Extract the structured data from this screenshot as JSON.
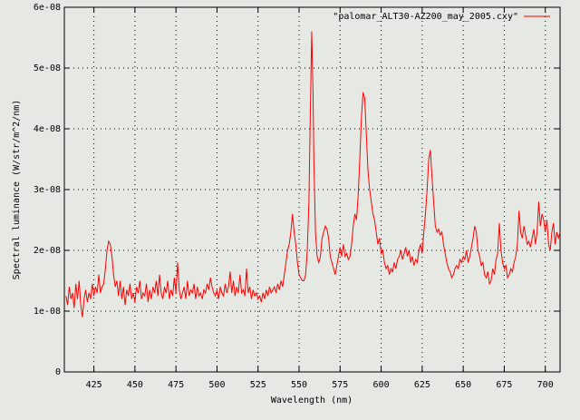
{
  "chart_data": {
    "type": "line",
    "xlabel": "Wavelength (nm)",
    "ylabel": "Spectral luminance (W/str/m^2/nm)",
    "xlim": [
      407,
      709
    ],
    "ylim": [
      0,
      6e-08
    ],
    "xticks": [
      425,
      450,
      475,
      500,
      525,
      550,
      575,
      600,
      625,
      650,
      675,
      700
    ],
    "yticks": [
      0,
      {
        "value": 1e-08,
        "label": "1e-08"
      },
      {
        "value": 2e-08,
        "label": "2e-08"
      },
      {
        "value": 3e-08,
        "label": "3e-08"
      },
      {
        "value": 4e-08,
        "label": "4e-08"
      },
      {
        "value": 5e-08,
        "label": "5e-08"
      },
      {
        "value": 6e-08,
        "label": "6e-08"
      }
    ],
    "grid": true,
    "legend": "top-right",
    "x": [
      408,
      409,
      410,
      411,
      412,
      413,
      414,
      415,
      416,
      417,
      418,
      419,
      420,
      421,
      422,
      423,
      424,
      425,
      426,
      427,
      428,
      429,
      430,
      431,
      432,
      433,
      434,
      435,
      436,
      437,
      438,
      439,
      440,
      441,
      442,
      443,
      444,
      445,
      446,
      447,
      448,
      449,
      450,
      451,
      452,
      453,
      454,
      455,
      456,
      457,
      458,
      459,
      460,
      461,
      462,
      463,
      464,
      465,
      466,
      467,
      468,
      469,
      470,
      471,
      472,
      473,
      474,
      475,
      476,
      477,
      478,
      479,
      480,
      481,
      482,
      483,
      484,
      485,
      486,
      487,
      488,
      489,
      490,
      491,
      492,
      493,
      494,
      495,
      496,
      497,
      498,
      499,
      500,
      501,
      502,
      503,
      504,
      505,
      506,
      507,
      508,
      509,
      510,
      511,
      512,
      513,
      514,
      515,
      516,
      517,
      518,
      519,
      520,
      521,
      522,
      523,
      524,
      525,
      526,
      527,
      528,
      529,
      530,
      531,
      532,
      533,
      534,
      535,
      536,
      537,
      538,
      539,
      540,
      541,
      542,
      543,
      544,
      545,
      546,
      547,
      548,
      549,
      550,
      551,
      552,
      553,
      554,
      555,
      556,
      557,
      557.7,
      558.5,
      559,
      560,
      561,
      562,
      563,
      564,
      565,
      566,
      567,
      568,
      569,
      570,
      571,
      572,
      573,
      574,
      575,
      576,
      577,
      578,
      579,
      580,
      581,
      582,
      583,
      584,
      585,
      586,
      587,
      588,
      589,
      590,
      591,
      592,
      593,
      594,
      595,
      596,
      597,
      598,
      599,
      600,
      601,
      602,
      603,
      604,
      605,
      606,
      607,
      608,
      609,
      610,
      611,
      612,
      613,
      614,
      615,
      616,
      617,
      618,
      619,
      620,
      621,
      622,
      623,
      624,
      625,
      626,
      627,
      628,
      629,
      630,
      631,
      632,
      633,
      634,
      635,
      636,
      637,
      638,
      639,
      640,
      641,
      642,
      643,
      644,
      645,
      646,
      647,
      648,
      649,
      650,
      651,
      652,
      653,
      654,
      655,
      656,
      657,
      658,
      659,
      660,
      661,
      662,
      663,
      664,
      665,
      666,
      667,
      668,
      669,
      670,
      671,
      672,
      673,
      674,
      675,
      676,
      677,
      678,
      679,
      680,
      681,
      682,
      683,
      684,
      685,
      686,
      687,
      688,
      689,
      690,
      691,
      692,
      693,
      694,
      695,
      696,
      697,
      698,
      699,
      700,
      701,
      702,
      703,
      704,
      705,
      706,
      707,
      708,
      709
    ],
    "series": [
      {
        "name": "\"palomar_ALT30-AZ200_may_2005.cxy\"",
        "color": "#ff0000",
        "values": [
          1.25e-08,
          1.1e-08,
          1.4e-08,
          1.2e-08,
          1.3e-08,
          1.05e-08,
          1.45e-08,
          1.2e-08,
          1.5e-08,
          1.1e-08,
          9e-09,
          1.2e-08,
          1.35e-08,
          1.15e-08,
          1.3e-08,
          1.2e-08,
          1.45e-08,
          1.25e-08,
          1.4e-08,
          1.3e-08,
          1.6e-08,
          1.3e-08,
          1.4e-08,
          1.45e-08,
          1.7e-08,
          2e-08,
          2.15e-08,
          2.1e-08,
          1.9e-08,
          1.6e-08,
          1.4e-08,
          1.5e-08,
          1.25e-08,
          1.5e-08,
          1.2e-08,
          1.4e-08,
          1.1e-08,
          1.35e-08,
          1.25e-08,
          1.45e-08,
          1.2e-08,
          1.3e-08,
          1.15e-08,
          1.4e-08,
          1.3e-08,
          1.5e-08,
          1.2e-08,
          1.3e-08,
          1.25e-08,
          1.45e-08,
          1.15e-08,
          1.35e-08,
          1.2e-08,
          1.4e-08,
          1.3e-08,
          1.5e-08,
          1.25e-08,
          1.6e-08,
          1.3e-08,
          1.2e-08,
          1.4e-08,
          1.3e-08,
          1.5e-08,
          1.2e-08,
          1.35e-08,
          1.25e-08,
          1.55e-08,
          1.3e-08,
          1.8e-08,
          1.35e-08,
          1.2e-08,
          1.3e-08,
          1.4e-08,
          1.2e-08,
          1.5e-08,
          1.25e-08,
          1.35e-08,
          1.3e-08,
          1.45e-08,
          1.2e-08,
          1.4e-08,
          1.25e-08,
          1.3e-08,
          1.2e-08,
          1.35e-08,
          1.3e-08,
          1.45e-08,
          1.35e-08,
          1.55e-08,
          1.4e-08,
          1.3e-08,
          1.25e-08,
          1.35e-08,
          1.2e-08,
          1.4e-08,
          1.3e-08,
          1.25e-08,
          1.45e-08,
          1.3e-08,
          1.4e-08,
          1.65e-08,
          1.3e-08,
          1.5e-08,
          1.25e-08,
          1.4e-08,
          1.3e-08,
          1.6e-08,
          1.3e-08,
          1.35e-08,
          1.25e-08,
          1.7e-08,
          1.3e-08,
          1.4e-08,
          1.2e-08,
          1.35e-08,
          1.25e-08,
          1.3e-08,
          1.2e-08,
          1.25e-08,
          1.15e-08,
          1.3e-08,
          1.2e-08,
          1.35e-08,
          1.25e-08,
          1.4e-08,
          1.3e-08,
          1.35e-08,
          1.4e-08,
          1.3e-08,
          1.45e-08,
          1.35e-08,
          1.5e-08,
          1.4e-08,
          1.6e-08,
          1.8e-08,
          2e-08,
          2.1e-08,
          2.3e-08,
          2.6e-08,
          2.3e-08,
          2.1e-08,
          1.8e-08,
          1.6e-08,
          1.55e-08,
          1.5e-08,
          1.5e-08,
          1.6e-08,
          2e-08,
          2.8e-08,
          4.5e-08,
          5.6e-08,
          4.6e-08,
          3.5e-08,
          2.3e-08,
          1.9e-08,
          1.8e-08,
          1.9e-08,
          2.2e-08,
          2.3e-08,
          2.4e-08,
          2.35e-08,
          2.2e-08,
          1.9e-08,
          1.8e-08,
          1.7e-08,
          1.6e-08,
          1.75e-08,
          1.9e-08,
          2.05e-08,
          1.9e-08,
          2.1e-08,
          1.9e-08,
          1.95e-08,
          1.85e-08,
          1.9e-08,
          2.1e-08,
          2.4e-08,
          2.6e-08,
          2.5e-08,
          2.9e-08,
          3.5e-08,
          4.2e-08,
          4.6e-08,
          4.5e-08,
          3.9e-08,
          3.3e-08,
          3e-08,
          2.8e-08,
          2.6e-08,
          2.5e-08,
          2.3e-08,
          2.1e-08,
          2.2e-08,
          1.95e-08,
          2e-08,
          1.8e-08,
          1.7e-08,
          1.75e-08,
          1.6e-08,
          1.7e-08,
          1.65e-08,
          1.8e-08,
          1.7e-08,
          1.85e-08,
          1.9e-08,
          2e-08,
          1.85e-08,
          1.95e-08,
          2.05e-08,
          1.9e-08,
          2e-08,
          1.8e-08,
          1.9e-08,
          1.75e-08,
          1.85e-08,
          1.8e-08,
          2e-08,
          2.1e-08,
          1.95e-08,
          2.3e-08,
          2.6e-08,
          3e-08,
          3.5e-08,
          3.65e-08,
          3.2e-08,
          2.8e-08,
          2.4e-08,
          2.3e-08,
          2.35e-08,
          2.25e-08,
          2.3e-08,
          2.1e-08,
          1.95e-08,
          1.8e-08,
          1.7e-08,
          1.65e-08,
          1.55e-08,
          1.6e-08,
          1.7e-08,
          1.75e-08,
          1.7e-08,
          1.85e-08,
          1.8e-08,
          1.9e-08,
          1.85e-08,
          2e-08,
          1.8e-08,
          1.9e-08,
          2.05e-08,
          2.2e-08,
          2.4e-08,
          2.3e-08,
          2e-08,
          1.9e-08,
          1.75e-08,
          1.8e-08,
          1.6e-08,
          1.55e-08,
          1.65e-08,
          1.45e-08,
          1.5e-08,
          1.7e-08,
          1.6e-08,
          1.85e-08,
          1.95e-08,
          2.45e-08,
          2e-08,
          1.8e-08,
          1.7e-08,
          1.75e-08,
          1.55e-08,
          1.6e-08,
          1.7e-08,
          1.65e-08,
          1.8e-08,
          1.9e-08,
          2.1e-08,
          2.65e-08,
          2.3e-08,
          2.2e-08,
          2.4e-08,
          2.25e-08,
          2.1e-08,
          2.15e-08,
          2.05e-08,
          2.2e-08,
          2.35e-08,
          2.1e-08,
          2.3e-08,
          2.8e-08,
          2.4e-08,
          2.6e-08,
          2.5e-08,
          2.3e-08,
          2.5e-08,
          2.1e-08,
          2e-08,
          2.3e-08,
          2.45e-08,
          2.1e-08,
          2.3e-08,
          2.2e-08,
          2.3e-08
        ]
      }
    ]
  }
}
